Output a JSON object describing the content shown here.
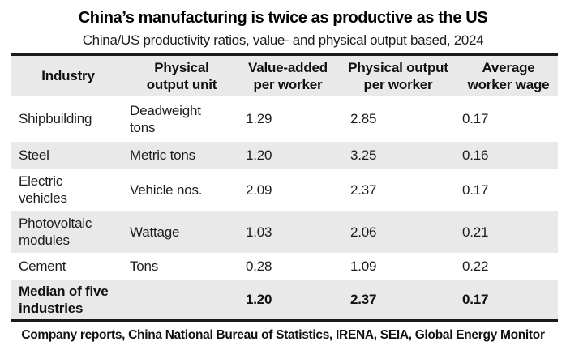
{
  "title": "China’s manufacturing is twice as productive as the US",
  "subtitle": "China/US productivity ratios, value- and physical output based, 2024",
  "source": "Company reports, China National Bureau of Statistics, IRENA, SEIA, Global Energy Monitor",
  "colors": {
    "row_shade": "#e9e9e9",
    "border": "#1a1a1a",
    "text": "#1d1d1d",
    "background": "#ffffff"
  },
  "chart_data": {
    "type": "table",
    "title": "China’s manufacturing is twice as productive as the US",
    "subtitle": "China/US productivity ratios, value- and physical output based, 2024",
    "columns": [
      "Industry",
      "Physical\noutput unit",
      "Value-added\nper worker",
      "Physical output\nper worker",
      "Average\nworker wage"
    ],
    "rows": [
      {
        "cells": [
          "Shipbuilding",
          "Deadweight\ntons",
          "1.29",
          "2.85",
          "0.17"
        ],
        "shaded": false,
        "bold": false
      },
      {
        "cells": [
          "Steel",
          "Metric tons",
          "1.20",
          "3.25",
          "0.16"
        ],
        "shaded": true,
        "bold": false
      },
      {
        "cells": [
          "Electric\nvehicles",
          "Vehicle nos.",
          "2.09",
          "2.37",
          "0.17"
        ],
        "shaded": false,
        "bold": false
      },
      {
        "cells": [
          "Photovoltaic\nmodules",
          "Wattage",
          "1.03",
          "2.06",
          "0.21"
        ],
        "shaded": true,
        "bold": false
      },
      {
        "cells": [
          "Cement",
          "Tons",
          "0.28",
          "1.09",
          "0.22"
        ],
        "shaded": false,
        "bold": false
      },
      {
        "cells": [
          "Median of five\nindustries",
          "",
          "1.20",
          "2.37",
          "0.17"
        ],
        "shaded": true,
        "bold": true
      }
    ],
    "source": "Company reports, China National Bureau of Statistics, IRENA, SEIA, Global Energy Monitor"
  }
}
